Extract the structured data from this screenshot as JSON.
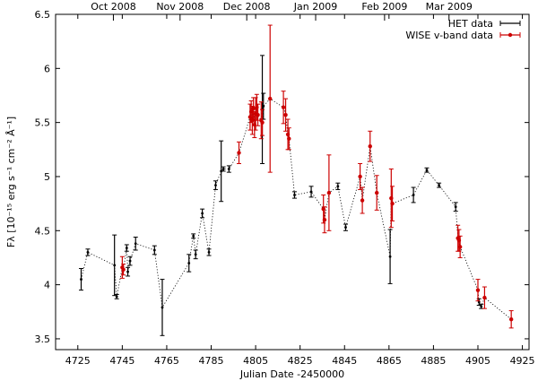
{
  "chart_data": {
    "type": "scatter",
    "title": "",
    "xlabel": "Julian Date -2450000",
    "ylabel": "Fλ [10⁻¹⁵ erg s⁻¹ cm⁻² Å⁻¹]",
    "xlim": [
      4715,
      4928
    ],
    "ylim": [
      3.4,
      6.5
    ],
    "xticks": [
      4725,
      4745,
      4765,
      4785,
      4805,
      4825,
      4845,
      4865,
      4885,
      4905,
      4925
    ],
    "yticks": [
      3.5,
      4,
      4.5,
      5,
      5.5,
      6,
      6.5
    ],
    "ytick_labels": [
      "3.5",
      "4",
      "4.5",
      "5",
      "5.5",
      "6",
      "6.5"
    ],
    "top_axis": {
      "ticks": [
        {
          "label": "Oct 2008",
          "x": 4741
        },
        {
          "label": "Nov 2008",
          "x": 4771
        },
        {
          "label": "Dec 2008",
          "x": 4801
        },
        {
          "label": "Jan 2009",
          "x": 4832
        },
        {
          "label": "Feb 2009",
          "x": 4863
        },
        {
          "label": "Mar 2009",
          "x": 4892
        }
      ]
    },
    "legend": {
      "position": "top-right"
    },
    "connector": {
      "style": "dotted",
      "color": "#000000"
    },
    "series": [
      {
        "name": "HET data",
        "color": "#000000",
        "points": [
          {
            "x": 4726.5,
            "y": 4.05,
            "err": 0.1
          },
          {
            "x": 4729.5,
            "y": 4.3,
            "err": 0.03
          },
          {
            "x": 4741.5,
            "y": 4.18,
            "err": 0.28
          },
          {
            "x": 4742.5,
            "y": 3.89,
            "err": 0.02
          },
          {
            "x": 4747.0,
            "y": 4.34,
            "err": 0.03
          },
          {
            "x": 4747.5,
            "y": 4.12,
            "err": 0.04
          },
          {
            "x": 4748.5,
            "y": 4.22,
            "err": 0.04
          },
          {
            "x": 4751.0,
            "y": 4.38,
            "err": 0.06
          },
          {
            "x": 4759.5,
            "y": 4.32,
            "err": 0.04
          },
          {
            "x": 4763.0,
            "y": 3.79,
            "err": 0.26
          },
          {
            "x": 4775.0,
            "y": 4.2,
            "err": 0.08
          },
          {
            "x": 4777.0,
            "y": 4.45,
            "err": 0.02
          },
          {
            "x": 4778.0,
            "y": 4.28,
            "err": 0.04
          },
          {
            "x": 4781.0,
            "y": 4.66,
            "err": 0.04
          },
          {
            "x": 4784.0,
            "y": 4.3,
            "err": 0.03
          },
          {
            "x": 4787.0,
            "y": 4.92,
            "err": 0.04
          },
          {
            "x": 4789.5,
            "y": 5.05,
            "err": 0.28
          },
          {
            "x": 4790.5,
            "y": 5.07,
            "err": 0.02
          },
          {
            "x": 4793.0,
            "y": 5.07,
            "err": 0.03
          },
          {
            "x": 4808.0,
            "y": 5.62,
            "err": 0.5
          },
          {
            "x": 4808.5,
            "y": 5.65,
            "err": 0.12
          },
          {
            "x": 4822.5,
            "y": 4.83,
            "err": 0.03
          },
          {
            "x": 4830.0,
            "y": 4.86,
            "err": 0.05
          },
          {
            "x": 4842.0,
            "y": 4.91,
            "err": 0.03
          },
          {
            "x": 4845.5,
            "y": 4.53,
            "err": 0.03
          },
          {
            "x": 4865.5,
            "y": 4.26,
            "err": 0.25
          },
          {
            "x": 4876.0,
            "y": 4.83,
            "err": 0.07
          },
          {
            "x": 4882.0,
            "y": 5.06,
            "err": 0.02
          },
          {
            "x": 4887.5,
            "y": 4.92,
            "err": 0.02
          },
          {
            "x": 4895.0,
            "y": 4.72,
            "err": 0.04
          },
          {
            "x": 4905.5,
            "y": 3.84,
            "err": 0.03
          },
          {
            "x": 4906.5,
            "y": 3.8,
            "err": 0.02
          }
        ]
      },
      {
        "name": "WISE v-band data",
        "color": "#cc0000",
        "points": [
          {
            "x": 4745.0,
            "y": 4.16,
            "err": 0.1
          },
          {
            "x": 4745.5,
            "y": 4.14,
            "err": 0.05
          },
          {
            "x": 4797.5,
            "y": 5.22,
            "err": 0.1
          },
          {
            "x": 4802.5,
            "y": 5.55,
            "err": 0.12
          },
          {
            "x": 4803.0,
            "y": 5.6,
            "err": 0.1
          },
          {
            "x": 4803.5,
            "y": 5.52,
            "err": 0.13
          },
          {
            "x": 4804.0,
            "y": 5.63,
            "err": 0.1
          },
          {
            "x": 4804.5,
            "y": 5.48,
            "err": 0.12
          },
          {
            "x": 4805.0,
            "y": 5.58,
            "err": 0.15
          },
          {
            "x": 4805.5,
            "y": 5.64,
            "err": 0.12
          },
          {
            "x": 4806.0,
            "y": 5.57,
            "err": 0.1
          },
          {
            "x": 4807.5,
            "y": 5.52,
            "err": 0.17
          },
          {
            "x": 4808.0,
            "y": 5.5,
            "err": 0.12
          },
          {
            "x": 4811.5,
            "y": 5.72,
            "err": 0.68
          },
          {
            "x": 4817.5,
            "y": 5.64,
            "err": 0.15
          },
          {
            "x": 4818.5,
            "y": 5.57,
            "err": 0.15
          },
          {
            "x": 4819.5,
            "y": 5.39,
            "err": 0.14
          },
          {
            "x": 4820.0,
            "y": 5.35,
            "err": 0.1
          },
          {
            "x": 4835.5,
            "y": 4.7,
            "err": 0.13
          },
          {
            "x": 4836.0,
            "y": 4.6,
            "err": 0.12
          },
          {
            "x": 4838.0,
            "y": 4.85,
            "err": 0.35
          },
          {
            "x": 4852.0,
            "y": 5.0,
            "err": 0.12
          },
          {
            "x": 4853.0,
            "y": 4.78,
            "err": 0.12
          },
          {
            "x": 4856.5,
            "y": 5.28,
            "err": 0.14
          },
          {
            "x": 4859.5,
            "y": 4.85,
            "err": 0.16
          },
          {
            "x": 4866.0,
            "y": 4.8,
            "err": 0.27
          },
          {
            "x": 4866.5,
            "y": 4.75,
            "err": 0.16
          },
          {
            "x": 4896.0,
            "y": 4.43,
            "err": 0.12
          },
          {
            "x": 4896.5,
            "y": 4.41,
            "err": 0.1
          },
          {
            "x": 4897.0,
            "y": 4.35,
            "err": 0.1
          },
          {
            "x": 4905.0,
            "y": 3.95,
            "err": 0.1
          },
          {
            "x": 4908.0,
            "y": 3.88,
            "err": 0.1
          },
          {
            "x": 4920.0,
            "y": 3.68,
            "err": 0.08
          }
        ]
      }
    ]
  }
}
